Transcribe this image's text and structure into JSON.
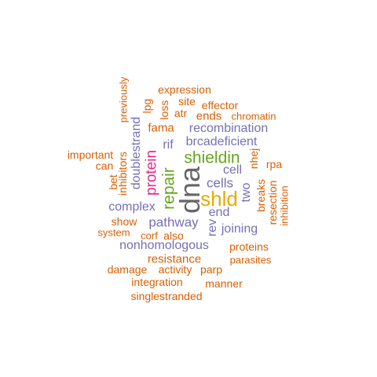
{
  "palette": {
    "orange": "#d95f02",
    "purple": "#7570b3",
    "magenta": "#e7298a",
    "green": "#66a61e",
    "gold": "#e6ab02",
    "gray": "#666666"
  },
  "words": [
    {
      "text": "dna",
      "weight": 1,
      "color": "#666666",
      "vertical": true
    },
    {
      "text": "shld",
      "weight": 2,
      "color": "#e6ab02",
      "vertical": false
    },
    {
      "text": "shieldin",
      "weight": 3,
      "color": "#66a61e",
      "vertical": false
    },
    {
      "text": "repair",
      "weight": 3,
      "color": "#66a61e",
      "vertical": true
    },
    {
      "text": "protein",
      "weight": 4,
      "color": "#e7298a",
      "vertical": true
    },
    {
      "text": "pathway",
      "weight": 5,
      "color": "#7570b3",
      "vertical": false
    },
    {
      "text": "cells",
      "weight": 5,
      "color": "#7570b3",
      "vertical": false
    },
    {
      "text": "complex",
      "weight": 6,
      "color": "#7570b3",
      "vertical": false
    },
    {
      "text": "brcadeficient",
      "weight": 6,
      "color": "#7570b3",
      "vertical": false
    },
    {
      "text": "recombination",
      "weight": 6,
      "color": "#7570b3",
      "vertical": false
    },
    {
      "text": "nonhomologous",
      "weight": 6,
      "color": "#7570b3",
      "vertical": false
    },
    {
      "text": "doublestrand",
      "weight": 6,
      "color": "#7570b3",
      "vertical": true
    },
    {
      "text": "joining",
      "weight": 6,
      "color": "#7570b3",
      "vertical": false
    },
    {
      "text": "end",
      "weight": 6,
      "color": "#7570b3",
      "vertical": false
    },
    {
      "text": "cell",
      "weight": 6,
      "color": "#7570b3",
      "vertical": false
    },
    {
      "text": "rif",
      "weight": 6,
      "color": "#7570b3",
      "vertical": false
    },
    {
      "text": "rev",
      "weight": 6,
      "color": "#7570b3",
      "vertical": true
    },
    {
      "text": "two",
      "weight": 6,
      "color": "#7570b3",
      "vertical": true
    },
    {
      "text": "resistance",
      "weight": 7,
      "color": "#d95f02",
      "vertical": false
    },
    {
      "text": "fama",
      "weight": 7,
      "color": "#d95f02",
      "vertical": false
    },
    {
      "text": "ends",
      "weight": 7,
      "color": "#d95f02",
      "vertical": false
    },
    {
      "text": "chromatin",
      "weight": 8,
      "color": "#d95f02",
      "vertical": false
    },
    {
      "text": "effector",
      "weight": 8,
      "color": "#d95f02",
      "vertical": false
    },
    {
      "text": "proteins",
      "weight": 8,
      "color": "#d95f02",
      "vertical": false
    },
    {
      "text": "breaks",
      "weight": 8,
      "color": "#d95f02",
      "vertical": true
    },
    {
      "text": "resection",
      "weight": 8,
      "color": "#d95f02",
      "vertical": true
    },
    {
      "text": "inhibition",
      "weight": 8,
      "color": "#d95f02",
      "vertical": true
    },
    {
      "text": "nhej",
      "weight": 8,
      "color": "#d95f02",
      "vertical": true
    },
    {
      "text": "rpa",
      "weight": 8,
      "color": "#d95f02",
      "vertical": false
    },
    {
      "text": "expression",
      "weight": 9,
      "color": "#d95f02",
      "vertical": false
    },
    {
      "text": "site",
      "weight": 9,
      "color": "#d95f02",
      "vertical": false
    },
    {
      "text": "atr",
      "weight": 9,
      "color": "#d95f02",
      "vertical": false
    },
    {
      "text": "loss",
      "weight": 9,
      "color": "#d95f02",
      "vertical": true
    },
    {
      "text": "lpg",
      "weight": 9,
      "color": "#d95f02",
      "vertical": true
    },
    {
      "text": "previously",
      "weight": 9,
      "color": "#d95f02",
      "vertical": true
    },
    {
      "text": "important",
      "weight": 9,
      "color": "#d95f02",
      "vertical": false
    },
    {
      "text": "can",
      "weight": 9,
      "color": "#d95f02",
      "vertical": false
    },
    {
      "text": "inhibitors",
      "weight": 9,
      "color": "#d95f02",
      "vertical": true
    },
    {
      "text": "bet",
      "weight": 9,
      "color": "#d95f02",
      "vertical": true
    },
    {
      "text": "show",
      "weight": 9,
      "color": "#d95f02",
      "vertical": false
    },
    {
      "text": "system",
      "weight": 9,
      "color": "#d95f02",
      "vertical": false
    },
    {
      "text": "corf",
      "weight": 9,
      "color": "#d95f02",
      "vertical": false
    },
    {
      "text": "also",
      "weight": 9,
      "color": "#d95f02",
      "vertical": false
    },
    {
      "text": "parasites",
      "weight": 9,
      "color": "#d95f02",
      "vertical": false
    },
    {
      "text": "damage",
      "weight": 9,
      "color": "#d95f02",
      "vertical": false
    },
    {
      "text": "activity",
      "weight": 9,
      "color": "#d95f02",
      "vertical": false
    },
    {
      "text": "parp",
      "weight": 9,
      "color": "#d95f02",
      "vertical": false
    },
    {
      "text": "integration",
      "weight": 9,
      "color": "#d95f02",
      "vertical": false
    },
    {
      "text": "manner",
      "weight": 9,
      "color": "#d95f02",
      "vertical": false
    },
    {
      "text": "singlestranded",
      "weight": 9,
      "color": "#d95f02",
      "vertical": false
    }
  ]
}
